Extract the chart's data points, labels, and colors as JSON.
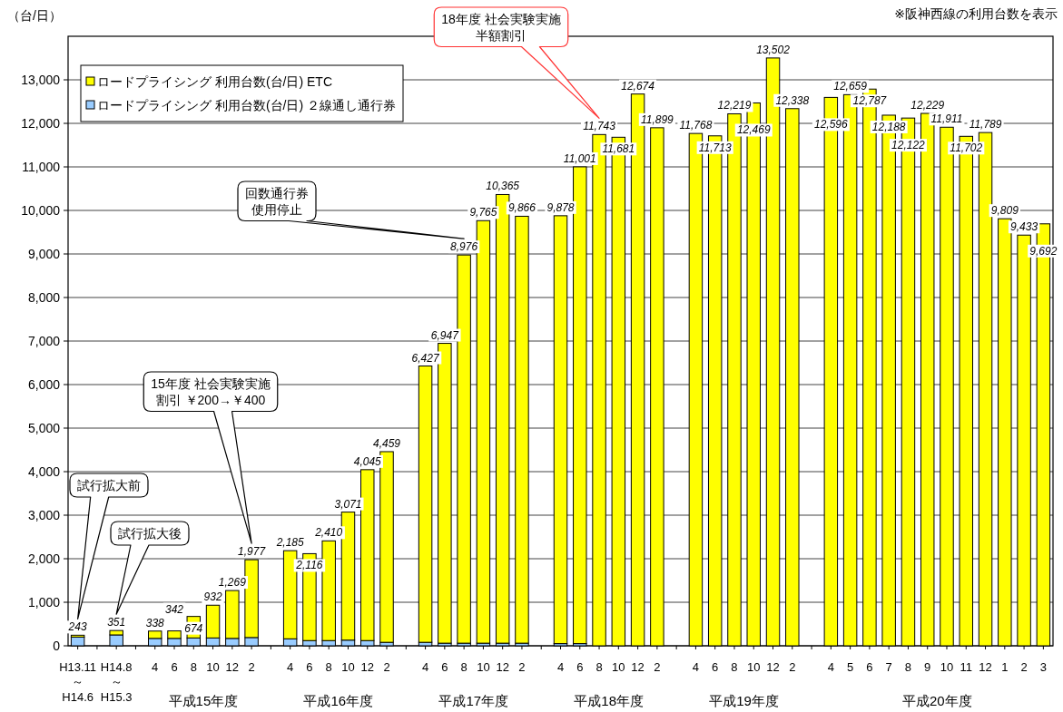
{
  "chart_data": {
    "type": "bar",
    "stacked": true,
    "ylabel": "（台/日）",
    "legend": "top left",
    "grid": "y",
    "ylim": [
      0,
      14000
    ],
    "yticks": [
      0,
      {
        "value": 1000,
        "label": "1,000"
      },
      {
        "value": 2000,
        "label": "2,000"
      },
      {
        "value": 3000,
        "label": "3,000"
      },
      {
        "value": 4000,
        "label": "4,000"
      },
      {
        "value": 5000,
        "label": "5,000"
      },
      {
        "value": 6000,
        "label": "6,000"
      },
      {
        "value": 7000,
        "label": "7,000"
      },
      {
        "value": 8000,
        "label": "8,000"
      },
      {
        "value": 9000,
        "label": "9,000"
      },
      {
        "value": 10000,
        "label": "10,000"
      },
      {
        "value": 11000,
        "label": "11,000"
      },
      {
        "value": 12000,
        "label": "12,000"
      },
      {
        "value": 13000,
        "label": "13,000"
      }
    ],
    "categories": [
      "H13.11\n～\nH14.6",
      null,
      "H14.8\n～\nH15.3",
      null,
      "4",
      "6",
      "8",
      "10",
      "12",
      "2",
      null,
      "4",
      "6",
      "8",
      "10",
      "12",
      "2",
      null,
      "4",
      "6",
      "8",
      "10",
      "12",
      "2",
      null,
      "4",
      "6",
      "8",
      "10",
      "12",
      "2",
      null,
      "4",
      "6",
      "8",
      "10",
      "12",
      "2",
      null,
      "4",
      "5",
      "6",
      "7",
      "8",
      "9",
      "10",
      "11",
      "12",
      "1",
      "2",
      "3"
    ],
    "series": [
      {
        "name": "ロードプライシング 利用台数(台/日) ２線通し通行券",
        "color": "#99ccff",
        "values": [
          200,
          null,
          250,
          null,
          170,
          170,
          180,
          180,
          170,
          190,
          null,
          160,
          120,
          120,
          130,
          120,
          80,
          null,
          80,
          60,
          60,
          60,
          60,
          60,
          null,
          50,
          50,
          null,
          null,
          null,
          null,
          null,
          null,
          null,
          null,
          null,
          null,
          null,
          null,
          null,
          null,
          null,
          null,
          null,
          null,
          null,
          null,
          null,
          null,
          null,
          null
        ]
      },
      {
        "name": "ロードプライシング 利用台数(台/日) ETC",
        "color": "#ffff00",
        "values": [
          43,
          null,
          101,
          null,
          168,
          172,
          494,
          752,
          1099,
          1787,
          null,
          2025,
          1996,
          2290,
          2941,
          3925,
          4379,
          null,
          6347,
          6887,
          8916,
          9705,
          10305,
          9806,
          null,
          9828,
          10951,
          11743,
          11681,
          12674,
          11899,
          null,
          11768,
          11713,
          12219,
          12469,
          13502,
          12338,
          null,
          12596,
          12659,
          12787,
          12188,
          12122,
          12229,
          11911,
          11702,
          11789,
          9809,
          9433,
          9692
        ]
      }
    ],
    "totals": [
      "243",
      null,
      "351",
      null,
      "338",
      "342",
      "674",
      "932",
      "1,269",
      "1,977",
      null,
      "2,185",
      "2,116",
      "2,410",
      "3,071",
      "4,045",
      "4,459",
      null,
      "6,427",
      "6,947",
      "8,976",
      "9,765",
      "10,365",
      "9,866",
      null,
      "9,878",
      "11,001",
      "11,743",
      "11,681",
      "12,674",
      "11,899",
      null,
      "11,768",
      "11,713",
      "12,219",
      "12,469",
      "13,502",
      "12,338",
      null,
      "12,596",
      "12,659",
      "12,787",
      "12,188",
      "12,122",
      "12,229",
      "11,911",
      "11,702",
      "11,789",
      "9,809",
      "9,433",
      "9,692"
    ],
    "annotations": [
      "※阪神西線の利用台数を表示",
      "試行拡大前",
      "試行拡大後",
      "15年度 社会実験実施割引 ￥200→￥400",
      "回数通行券使用停止",
      "18年度 社会実験実施半額割引",
      "平成15年度",
      "平成16年度",
      "平成17年度",
      "平成18年度",
      "平成19年度",
      "平成20年度"
    ]
  }
}
